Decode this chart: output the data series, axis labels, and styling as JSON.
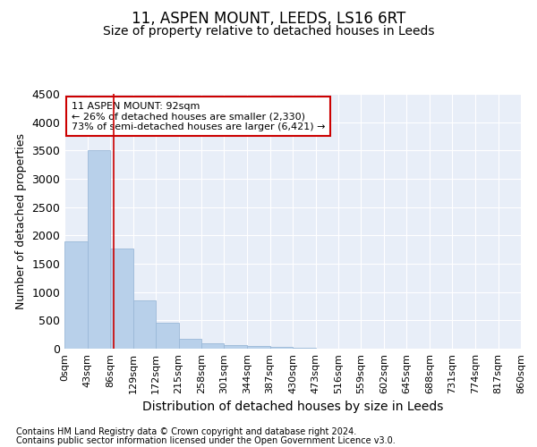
{
  "title1": "11, ASPEN MOUNT, LEEDS, LS16 6RT",
  "title2": "Size of property relative to detached houses in Leeds",
  "xlabel": "Distribution of detached houses by size in Leeds",
  "ylabel": "Number of detached properties",
  "footer1": "Contains HM Land Registry data © Crown copyright and database right 2024.",
  "footer2": "Contains public sector information licensed under the Open Government Licence v3.0.",
  "annotation_title": "11 ASPEN MOUNT: 92sqm",
  "annotation_line1": "← 26% of detached houses are smaller (2,330)",
  "annotation_line2": "73% of semi-detached houses are larger (6,421) →",
  "bar_edges": [
    0,
    43,
    86,
    129,
    172,
    215,
    258,
    301,
    344,
    387,
    430,
    473,
    516,
    559,
    602,
    645,
    688,
    731,
    774,
    817,
    860
  ],
  "bar_heights": [
    1900,
    3500,
    1775,
    850,
    460,
    175,
    100,
    65,
    45,
    30,
    15,
    5,
    2,
    1,
    1,
    0,
    0,
    0,
    0,
    0
  ],
  "bar_color": "#b8d0ea",
  "bar_edgecolor": "#9ab8d8",
  "vline_x": 92,
  "vline_color": "#cc0000",
  "ylim": [
    0,
    4500
  ],
  "yticks": [
    0,
    500,
    1000,
    1500,
    2000,
    2500,
    3000,
    3500,
    4000,
    4500
  ],
  "bg_color": "#ffffff",
  "plot_bg_color": "#e8eef8",
  "grid_color": "#ffffff",
  "annotation_box_color": "#ffffff",
  "annotation_box_edgecolor": "#cc0000",
  "title1_fontsize": 12,
  "title2_fontsize": 10,
  "tick_label_fontsize": 8,
  "xlabel_fontsize": 10,
  "ylabel_fontsize": 9,
  "footer_fontsize": 7
}
